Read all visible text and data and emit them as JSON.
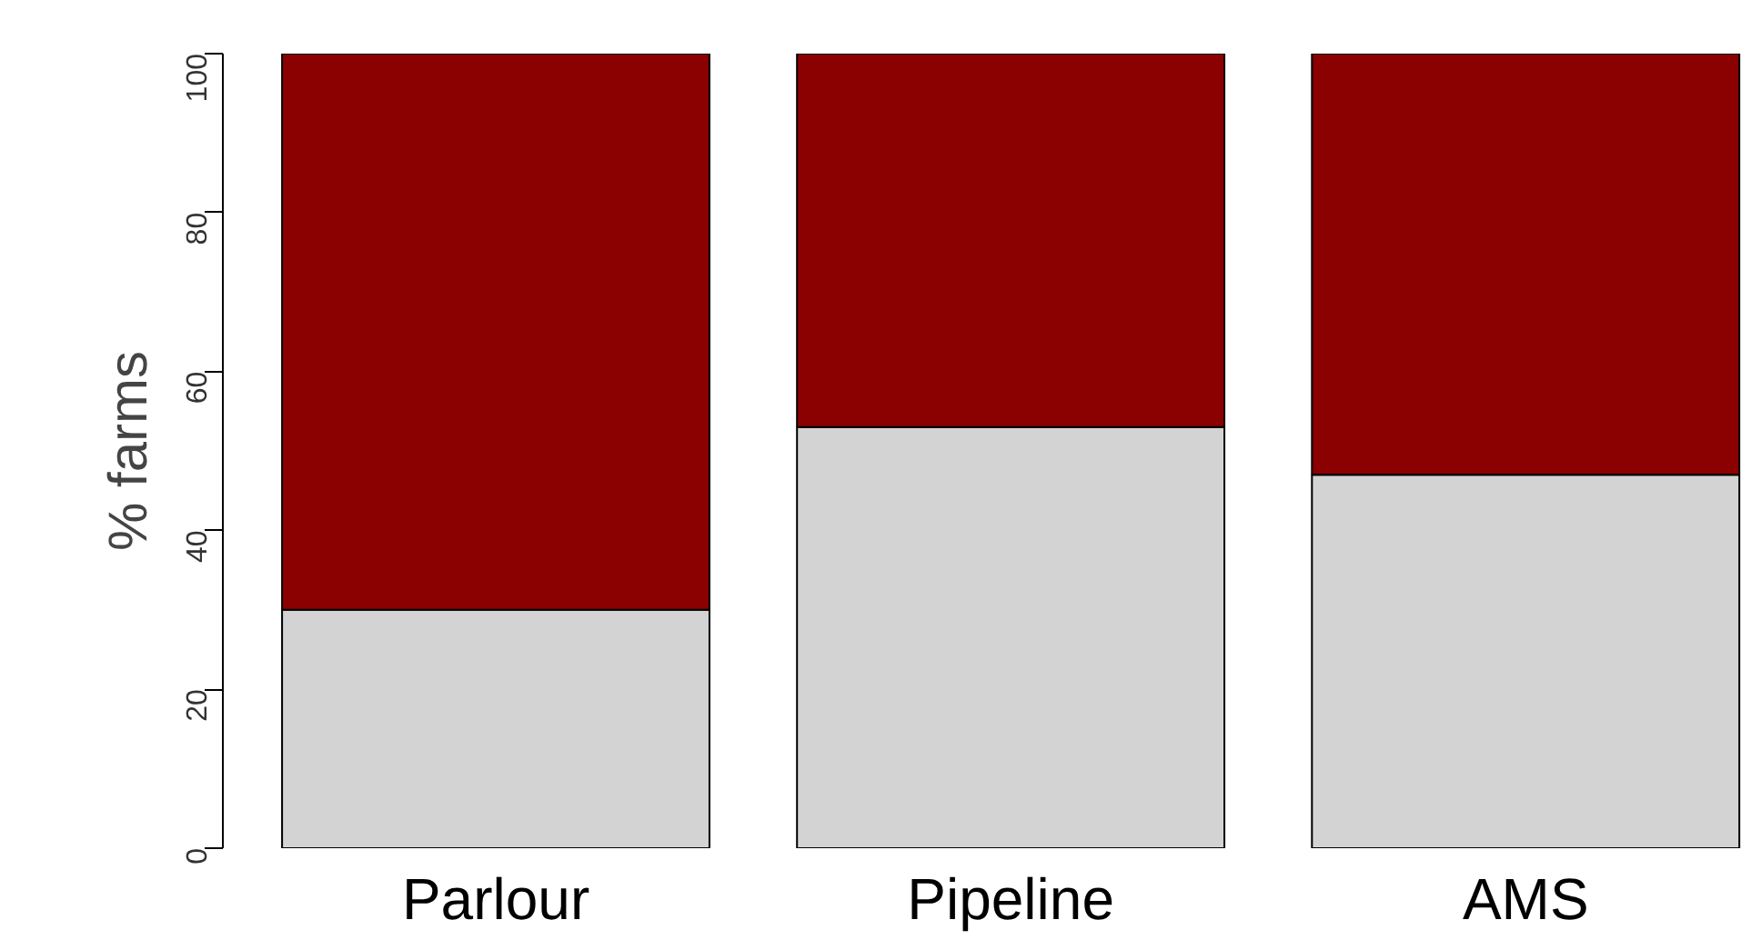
{
  "chart_data": {
    "type": "bar",
    "stacked": true,
    "ylabel": "% farms",
    "categories": [
      "Parlour",
      "Pipeline",
      "AMS"
    ],
    "series": [
      {
        "color": "#d3d3d3",
        "values": [
          30,
          53,
          47
        ]
      },
      {
        "color": "#8b0000",
        "values": [
          70,
          47,
          53
        ]
      }
    ],
    "ylim": [
      0,
      100
    ],
    "yticks": [
      0,
      20,
      40,
      60,
      80,
      100
    ],
    "grid": false
  }
}
